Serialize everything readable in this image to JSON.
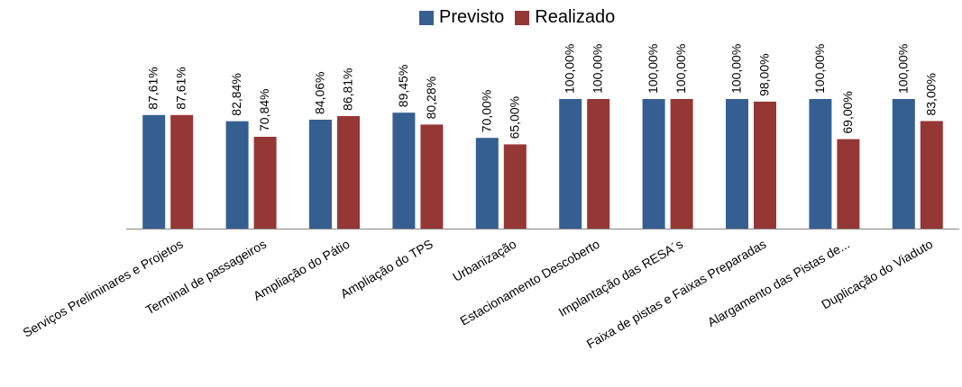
{
  "chart_data": {
    "type": "bar",
    "categories": [
      "Serviços Preliminares e Projetos",
      "Terminal de passageiros",
      "Ampliação do Pátio",
      "Ampliação do TPS",
      "Urbanização",
      "Estacionamento Descoberto",
      "Implantação das RESA´s",
      "Faixa de pistas e Faixas Preparadas",
      "Alargamento das Pistas de...",
      "Duplicação do Viaduto"
    ],
    "series": [
      {
        "name": "Previsto",
        "color": "#365F91",
        "values": [
          87.61,
          82.84,
          84.06,
          89.45,
          70.0,
          100.0,
          100.0,
          100.0,
          100.0,
          100.0
        ],
        "labels": [
          "87,61%",
          "82,84%",
          "84,06%",
          "89,45%",
          "70,00%",
          "100,00%",
          "100,00%",
          "100,00%",
          "100,00%",
          "100,00%"
        ]
      },
      {
        "name": "Realizado",
        "color": "#953735",
        "values": [
          87.61,
          70.84,
          86.81,
          80.28,
          65.0,
          100.0,
          100.0,
          98.0,
          69.0,
          83.0
        ],
        "labels": [
          "87,61%",
          "70,84%",
          "86,81%",
          "80,28%",
          "65,00%",
          "100,00%",
          "100,00%",
          "98,00%",
          "69,00%",
          "83,00%"
        ]
      }
    ],
    "ylim": [
      0,
      100
    ],
    "grid": false,
    "legend": "top-center"
  }
}
